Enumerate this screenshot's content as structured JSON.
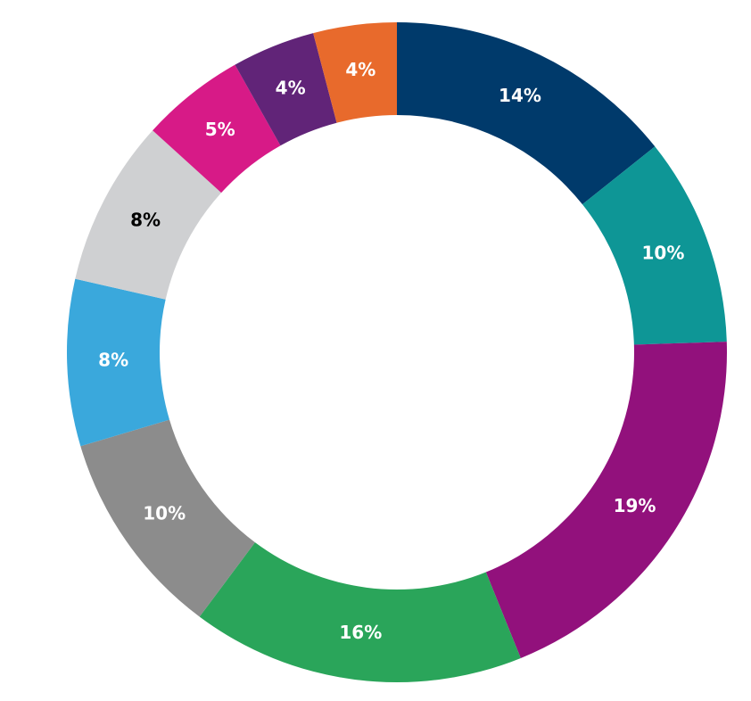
{
  "chart_data": {
    "type": "donut",
    "values": [
      14,
      10,
      19,
      16,
      10,
      8,
      8,
      5,
      4,
      4
    ],
    "value_labels": [
      "14%",
      "10%",
      "19%",
      "16%",
      "10%",
      "8%",
      "8%",
      "5%",
      "4%",
      "4%"
    ],
    "colors": [
      "#003a6b",
      "#0e9696",
      "#92117c",
      "#2aa55a",
      "#8c8c8c",
      "#3aa8dc",
      "#cfd0d2",
      "#d71a87",
      "#612478",
      "#e86a2c"
    ]
  }
}
